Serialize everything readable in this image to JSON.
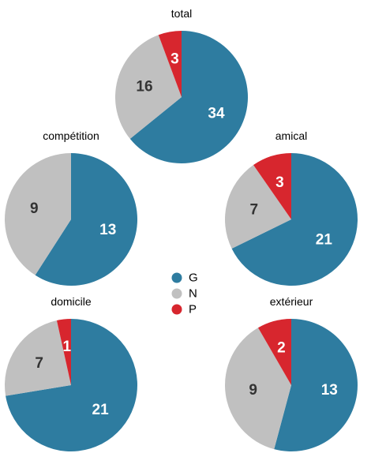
{
  "colors": {
    "G": "#2E7CA0",
    "N": "#C0C0C0",
    "P": "#D7262E"
  },
  "label_colors": {
    "G": "#ffffff",
    "N": "#333333",
    "P": "#ffffff"
  },
  "legend": [
    {
      "key": "G",
      "label": "G"
    },
    {
      "key": "N",
      "label": "N"
    },
    {
      "key": "P",
      "label": "P"
    }
  ],
  "chart_data": [
    {
      "type": "pie",
      "title": "total",
      "categories": [
        "G",
        "N",
        "P"
      ],
      "values": [
        34,
        16,
        3
      ]
    },
    {
      "type": "pie",
      "title": "compétition",
      "categories": [
        "G",
        "N",
        "P"
      ],
      "values": [
        13,
        9,
        0
      ]
    },
    {
      "type": "pie",
      "title": "amical",
      "categories": [
        "G",
        "N",
        "P"
      ],
      "values": [
        21,
        7,
        3
      ]
    },
    {
      "type": "pie",
      "title": "domicile",
      "categories": [
        "G",
        "N",
        "P"
      ],
      "values": [
        21,
        7,
        1
      ]
    },
    {
      "type": "pie",
      "title": "extérieur",
      "categories": [
        "G",
        "N",
        "P"
      ],
      "values": [
        13,
        9,
        2
      ]
    }
  ]
}
